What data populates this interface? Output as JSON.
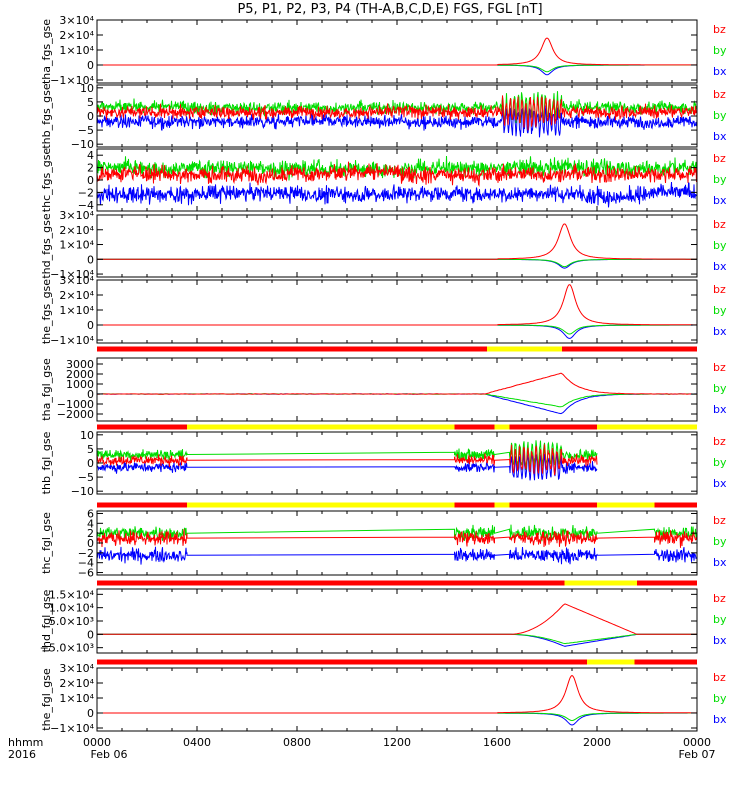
{
  "title": "P5, P1, P2, P3, P4 (TH-A,B,C,D,E) FGS, FGL [nT]",
  "colors": {
    "bx": "#0000ff",
    "by": "#00dd00",
    "bz": "#ff0000",
    "flag_red": "#ff0000",
    "flag_yellow": "#ffff00"
  },
  "time_axis": {
    "ticks": [
      {
        "hour": 0,
        "label": "0000",
        "sub": "Feb 06"
      },
      {
        "hour": 4,
        "label": "0400",
        "sub": ""
      },
      {
        "hour": 8,
        "label": "0800",
        "sub": ""
      },
      {
        "hour": 12,
        "label": "1200",
        "sub": ""
      },
      {
        "hour": 16,
        "label": "1600",
        "sub": ""
      },
      {
        "hour": 20,
        "label": "2000",
        "sub": ""
      },
      {
        "hour": 24,
        "label": "0000",
        "sub": "Feb 07"
      }
    ],
    "label_top": "hhmm",
    "label_bottom": "2016"
  },
  "chart_data": [
    {
      "type": "line",
      "ylabel": "tha_fgs_gse",
      "ylim": [
        -12000,
        30000
      ],
      "yticks": [
        {
          "v": 30000,
          "label": "3×10⁴"
        },
        {
          "v": 20000,
          "label": "2×10⁴"
        },
        {
          "v": 10000,
          "label": "1×10⁴"
        },
        {
          "v": 0,
          "label": "0"
        },
        {
          "v": -10000,
          "label": "−1×10⁴"
        }
      ],
      "legend": [
        "bz",
        "by",
        "bx"
      ],
      "kind": "spike",
      "spike": {
        "center": 18.0,
        "width": 0.28,
        "bz": 18000,
        "by": -4500,
        "bx": -6500
      },
      "data_range": [
        0,
        24
      ]
    },
    {
      "type": "line",
      "ylabel": "thb_fgs_gse",
      "ylim": [
        -11,
        11
      ],
      "yticks": [
        {
          "v": 10,
          "label": "10"
        },
        {
          "v": 5,
          "label": "5"
        },
        {
          "v": 0,
          "label": "0"
        },
        {
          "v": -5,
          "label": "−5"
        },
        {
          "v": -10,
          "label": "−10"
        }
      ],
      "legend": [
        "bz",
        "by",
        "bx"
      ],
      "kind": "noisy",
      "data_range": [
        0,
        24
      ]
    },
    {
      "type": "line",
      "ylabel": "thc_fgs_gse",
      "ylim": [
        -5,
        5
      ],
      "yticks": [
        {
          "v": 4,
          "label": "4"
        },
        {
          "v": 2,
          "label": "2"
        },
        {
          "v": 0,
          "label": "0"
        },
        {
          "v": -2,
          "label": "−2"
        },
        {
          "v": -4,
          "label": "−4"
        }
      ],
      "legend": [
        "bz",
        "by",
        "bx"
      ],
      "kind": "noisy2",
      "data_range": [
        0,
        24
      ]
    },
    {
      "type": "line",
      "ylabel": "thd_fgs_gse",
      "ylim": [
        -12000,
        30000
      ],
      "yticks": [
        {
          "v": 30000,
          "label": "3×10⁴"
        },
        {
          "v": 20000,
          "label": "2×10⁴"
        },
        {
          "v": 10000,
          "label": "1×10⁴"
        },
        {
          "v": 0,
          "label": "0"
        },
        {
          "v": -10000,
          "label": "−1×10⁴"
        }
      ],
      "legend": [
        "bz",
        "by",
        "bx"
      ],
      "kind": "spike",
      "spike": {
        "center": 18.7,
        "width": 0.3,
        "bz": 24000,
        "by": -5000,
        "bx": -6000
      },
      "data_range": [
        0,
        24
      ]
    },
    {
      "type": "line",
      "ylabel": "the_fgs_gse",
      "ylim": [
        -12000,
        30000
      ],
      "yticks": [
        {
          "v": 30000,
          "label": "3×10⁴"
        },
        {
          "v": 20000,
          "label": "2×10⁴"
        },
        {
          "v": 10000,
          "label": "1×10⁴"
        },
        {
          "v": 0,
          "label": "0"
        },
        {
          "v": -10000,
          "label": "−1×10⁴"
        }
      ],
      "legend": [
        "bz",
        "by",
        "bx"
      ],
      "kind": "spike",
      "spike": {
        "center": 18.9,
        "width": 0.3,
        "bz": 27000,
        "by": -6000,
        "bx": -9000
      },
      "data_range": [
        0,
        24
      ]
    },
    {
      "type": "line",
      "ylabel": "tha_fgl_gse",
      "ylim": [
        -2700,
        3600
      ],
      "yticks": [
        {
          "v": 3000,
          "label": "3000"
        },
        {
          "v": 2000,
          "label": "2000"
        },
        {
          "v": 1000,
          "label": "1000"
        },
        {
          "v": 0,
          "label": "0"
        },
        {
          "v": -1000,
          "label": "−1000"
        },
        {
          "v": -2000,
          "label": "−2000"
        }
      ],
      "legend": [
        "bz",
        "by",
        "bx"
      ],
      "kind": "ramp",
      "data_range": [
        0,
        24
      ],
      "flag": [
        {
          "from": 0,
          "to": 15.6,
          "color": "red"
        },
        {
          "from": 15.6,
          "to": 18.6,
          "color": "yellow"
        },
        {
          "from": 18.6,
          "to": 24,
          "color": "red"
        }
      ]
    },
    {
      "type": "line",
      "ylabel": "thb_fgl_gse",
      "ylim": [
        -11,
        11
      ],
      "yticks": [
        {
          "v": 10,
          "label": "10"
        },
        {
          "v": 5,
          "label": "5"
        },
        {
          "v": 0,
          "label": "0"
        },
        {
          "v": -5,
          "label": "−5"
        },
        {
          "v": -10,
          "label": "−10"
        }
      ],
      "legend": [
        "bz",
        "by",
        "bx"
      ],
      "kind": "gappy",
      "data_range": [
        0,
        20
      ],
      "flag": [
        {
          "from": 0,
          "to": 3.6,
          "color": "red"
        },
        {
          "from": 3.6,
          "to": 14.3,
          "color": "yellow"
        },
        {
          "from": 14.3,
          "to": 15.9,
          "color": "red"
        },
        {
          "from": 15.9,
          "to": 16.5,
          "color": "yellow"
        },
        {
          "from": 16.5,
          "to": 20.0,
          "color": "red"
        },
        {
          "from": 20.0,
          "to": 24,
          "color": "yellow"
        }
      ]
    },
    {
      "type": "line",
      "ylabel": "thc_fgl_gse",
      "ylim": [
        -6.5,
        6.5
      ],
      "yticks": [
        {
          "v": 6,
          "label": "6"
        },
        {
          "v": 4,
          "label": "4"
        },
        {
          "v": 2,
          "label": "2"
        },
        {
          "v": 0,
          "label": "0"
        },
        {
          "v": -2,
          "label": "−2"
        },
        {
          "v": -4,
          "label": "−4"
        },
        {
          "v": -6,
          "label": "−6"
        }
      ],
      "legend": [
        "bz",
        "by",
        "bx"
      ],
      "kind": "gappy2",
      "data_range": [
        0,
        24
      ],
      "flag": [
        {
          "from": 0,
          "to": 3.6,
          "color": "red"
        },
        {
          "from": 3.6,
          "to": 14.3,
          "color": "yellow"
        },
        {
          "from": 14.3,
          "to": 15.9,
          "color": "red"
        },
        {
          "from": 15.9,
          "to": 16.5,
          "color": "yellow"
        },
        {
          "from": 16.5,
          "to": 20.0,
          "color": "red"
        },
        {
          "from": 20.0,
          "to": 22.3,
          "color": "yellow"
        },
        {
          "from": 22.3,
          "to": 24,
          "color": "red"
        }
      ]
    },
    {
      "type": "line",
      "ylabel": "thd_fgl_gse",
      "ylim": [
        -7000,
        17000
      ],
      "yticks": [
        {
          "v": 15000,
          "label": "1.5×10⁴"
        },
        {
          "v": 10000,
          "label": "1.0×10⁴"
        },
        {
          "v": 5000,
          "label": "5.0×10³"
        },
        {
          "v": 0,
          "label": "0"
        },
        {
          "v": -5000,
          "label": "−5.0×10³"
        }
      ],
      "legend": [
        "bz",
        "by",
        "bx"
      ],
      "kind": "ramp2",
      "data_range": [
        0,
        24
      ],
      "flag": [
        {
          "from": 0,
          "to": 18.7,
          "color": "red"
        },
        {
          "from": 18.7,
          "to": 21.6,
          "color": "yellow"
        },
        {
          "from": 21.6,
          "to": 24,
          "color": "red"
        }
      ]
    },
    {
      "type": "line",
      "ylabel": "the_fgl_gse",
      "ylim": [
        -12000,
        30000
      ],
      "yticks": [
        {
          "v": 30000,
          "label": "3×10⁴"
        },
        {
          "v": 20000,
          "label": "2×10⁴"
        },
        {
          "v": 10000,
          "label": "1×10⁴"
        },
        {
          "v": 0,
          "label": "0"
        },
        {
          "v": -10000,
          "label": "−1×10⁴"
        }
      ],
      "legend": [
        "bz",
        "by",
        "bx"
      ],
      "kind": "spike",
      "spike": {
        "center": 19.0,
        "width": 0.3,
        "bz": 25000,
        "by": -5000,
        "bx": -8000
      },
      "data_range": [
        0,
        24
      ],
      "flag": [
        {
          "from": 0,
          "to": 19.6,
          "color": "red"
        },
        {
          "from": 19.6,
          "to": 21.5,
          "color": "yellow"
        },
        {
          "from": 21.5,
          "to": 24,
          "color": "red"
        }
      ]
    }
  ]
}
